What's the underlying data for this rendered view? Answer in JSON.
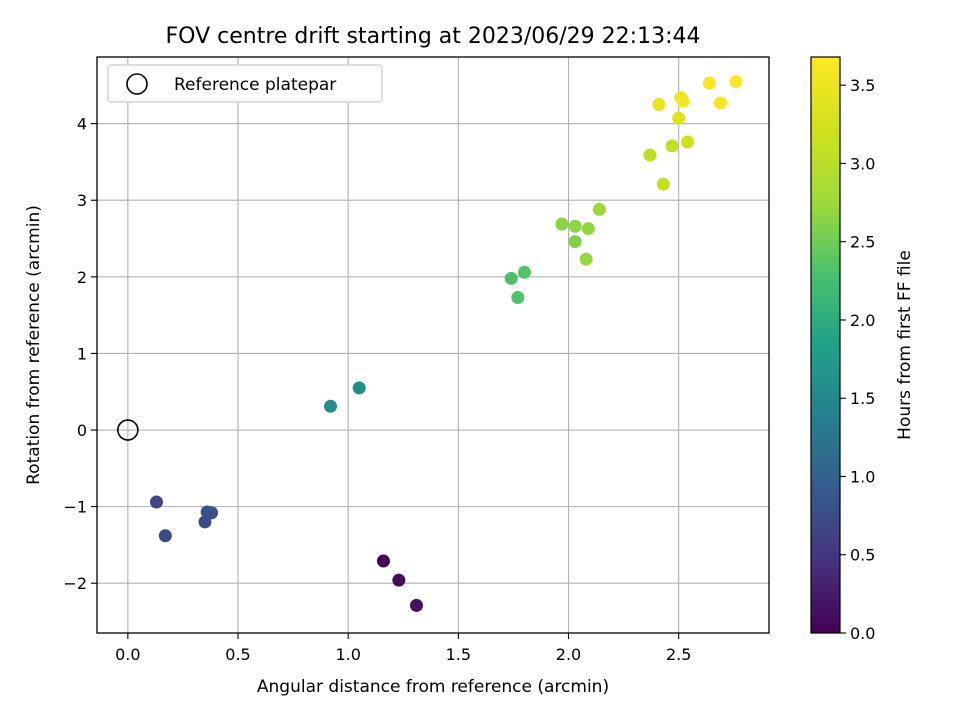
{
  "chart_data": {
    "type": "scatter",
    "title": "FOV centre drift starting at 2023/06/29 22:13:44",
    "xlabel": "Angular distance from reference (arcmin)",
    "ylabel": "Rotation from reference (arcmin)",
    "xlim": [
      -0.14,
      2.91
    ],
    "ylim": [
      -2.65,
      4.87
    ],
    "xticks": [
      {
        "value": 0.0,
        "label": "0.0"
      },
      {
        "value": 0.5,
        "label": "0.5"
      },
      {
        "value": 1.0,
        "label": "1.0"
      },
      {
        "value": 1.5,
        "label": "1.5"
      },
      {
        "value": 2.0,
        "label": "2.0"
      },
      {
        "value": 2.5,
        "label": "2.5"
      }
    ],
    "yticks": [
      {
        "value": -2,
        "label": "−2"
      },
      {
        "value": -1,
        "label": "−1"
      },
      {
        "value": 0,
        "label": "0"
      },
      {
        "value": 1,
        "label": "1"
      },
      {
        "value": 2,
        "label": "2"
      },
      {
        "value": 3,
        "label": "3"
      },
      {
        "value": 4,
        "label": "4"
      }
    ],
    "grid": true,
    "legend": {
      "placement": "top-left",
      "entries": [
        "Reference platepar"
      ]
    },
    "reference_point": {
      "x": 0.0,
      "y": 0.0
    },
    "colorbar": {
      "label": "Hours from first FF file",
      "range": [
        0.0,
        3.68
      ],
      "colormap": "viridis",
      "ticks": [
        {
          "value": 0.0,
          "label": "0.0"
        },
        {
          "value": 0.5,
          "label": "0.5"
        },
        {
          "value": 1.0,
          "label": "1.0"
        },
        {
          "value": 1.5,
          "label": "1.5"
        },
        {
          "value": 2.0,
          "label": "2.0"
        },
        {
          "value": 2.5,
          "label": "2.5"
        },
        {
          "value": 3.0,
          "label": "3.0"
        },
        {
          "value": 3.5,
          "label": "3.5"
        }
      ]
    },
    "points": [
      {
        "x": 1.16,
        "y": -1.71,
        "hours": 0.05
      },
      {
        "x": 1.23,
        "y": -1.96,
        "hours": 0.1
      },
      {
        "x": 1.31,
        "y": -2.29,
        "hours": 0.15
      },
      {
        "x": 0.13,
        "y": -0.94,
        "hours": 0.7
      },
      {
        "x": 0.17,
        "y": -1.38,
        "hours": 0.72
      },
      {
        "x": 0.35,
        "y": -1.2,
        "hours": 0.75
      },
      {
        "x": 0.36,
        "y": -1.07,
        "hours": 0.78
      },
      {
        "x": 0.38,
        "y": -1.08,
        "hours": 0.8
      },
      {
        "x": 0.92,
        "y": 0.31,
        "hours": 1.55
      },
      {
        "x": 1.05,
        "y": 0.55,
        "hours": 1.6
      },
      {
        "x": 1.74,
        "y": 1.98,
        "hours": 2.3
      },
      {
        "x": 1.77,
        "y": 1.73,
        "hours": 2.33
      },
      {
        "x": 1.8,
        "y": 2.06,
        "hours": 2.35
      },
      {
        "x": 1.97,
        "y": 2.69,
        "hours": 2.65
      },
      {
        "x": 2.03,
        "y": 2.66,
        "hours": 2.65
      },
      {
        "x": 2.03,
        "y": 2.46,
        "hours": 2.6
      },
      {
        "x": 2.08,
        "y": 2.23,
        "hours": 2.7
      },
      {
        "x": 2.09,
        "y": 2.63,
        "hours": 2.68
      },
      {
        "x": 2.14,
        "y": 2.88,
        "hours": 2.75
      },
      {
        "x": 2.37,
        "y": 3.59,
        "hours": 3.05
      },
      {
        "x": 2.43,
        "y": 3.21,
        "hours": 3.1
      },
      {
        "x": 2.47,
        "y": 3.71,
        "hours": 3.08
      },
      {
        "x": 2.54,
        "y": 3.76,
        "hours": 3.2
      },
      {
        "x": 2.41,
        "y": 4.25,
        "hours": 3.45
      },
      {
        "x": 2.5,
        "y": 4.07,
        "hours": 3.35
      },
      {
        "x": 2.51,
        "y": 4.34,
        "hours": 3.55
      },
      {
        "x": 2.52,
        "y": 4.29,
        "hours": 3.58
      },
      {
        "x": 2.64,
        "y": 4.53,
        "hours": 3.62
      },
      {
        "x": 2.69,
        "y": 4.27,
        "hours": 3.6
      },
      {
        "x": 2.76,
        "y": 4.55,
        "hours": 3.66
      }
    ]
  }
}
